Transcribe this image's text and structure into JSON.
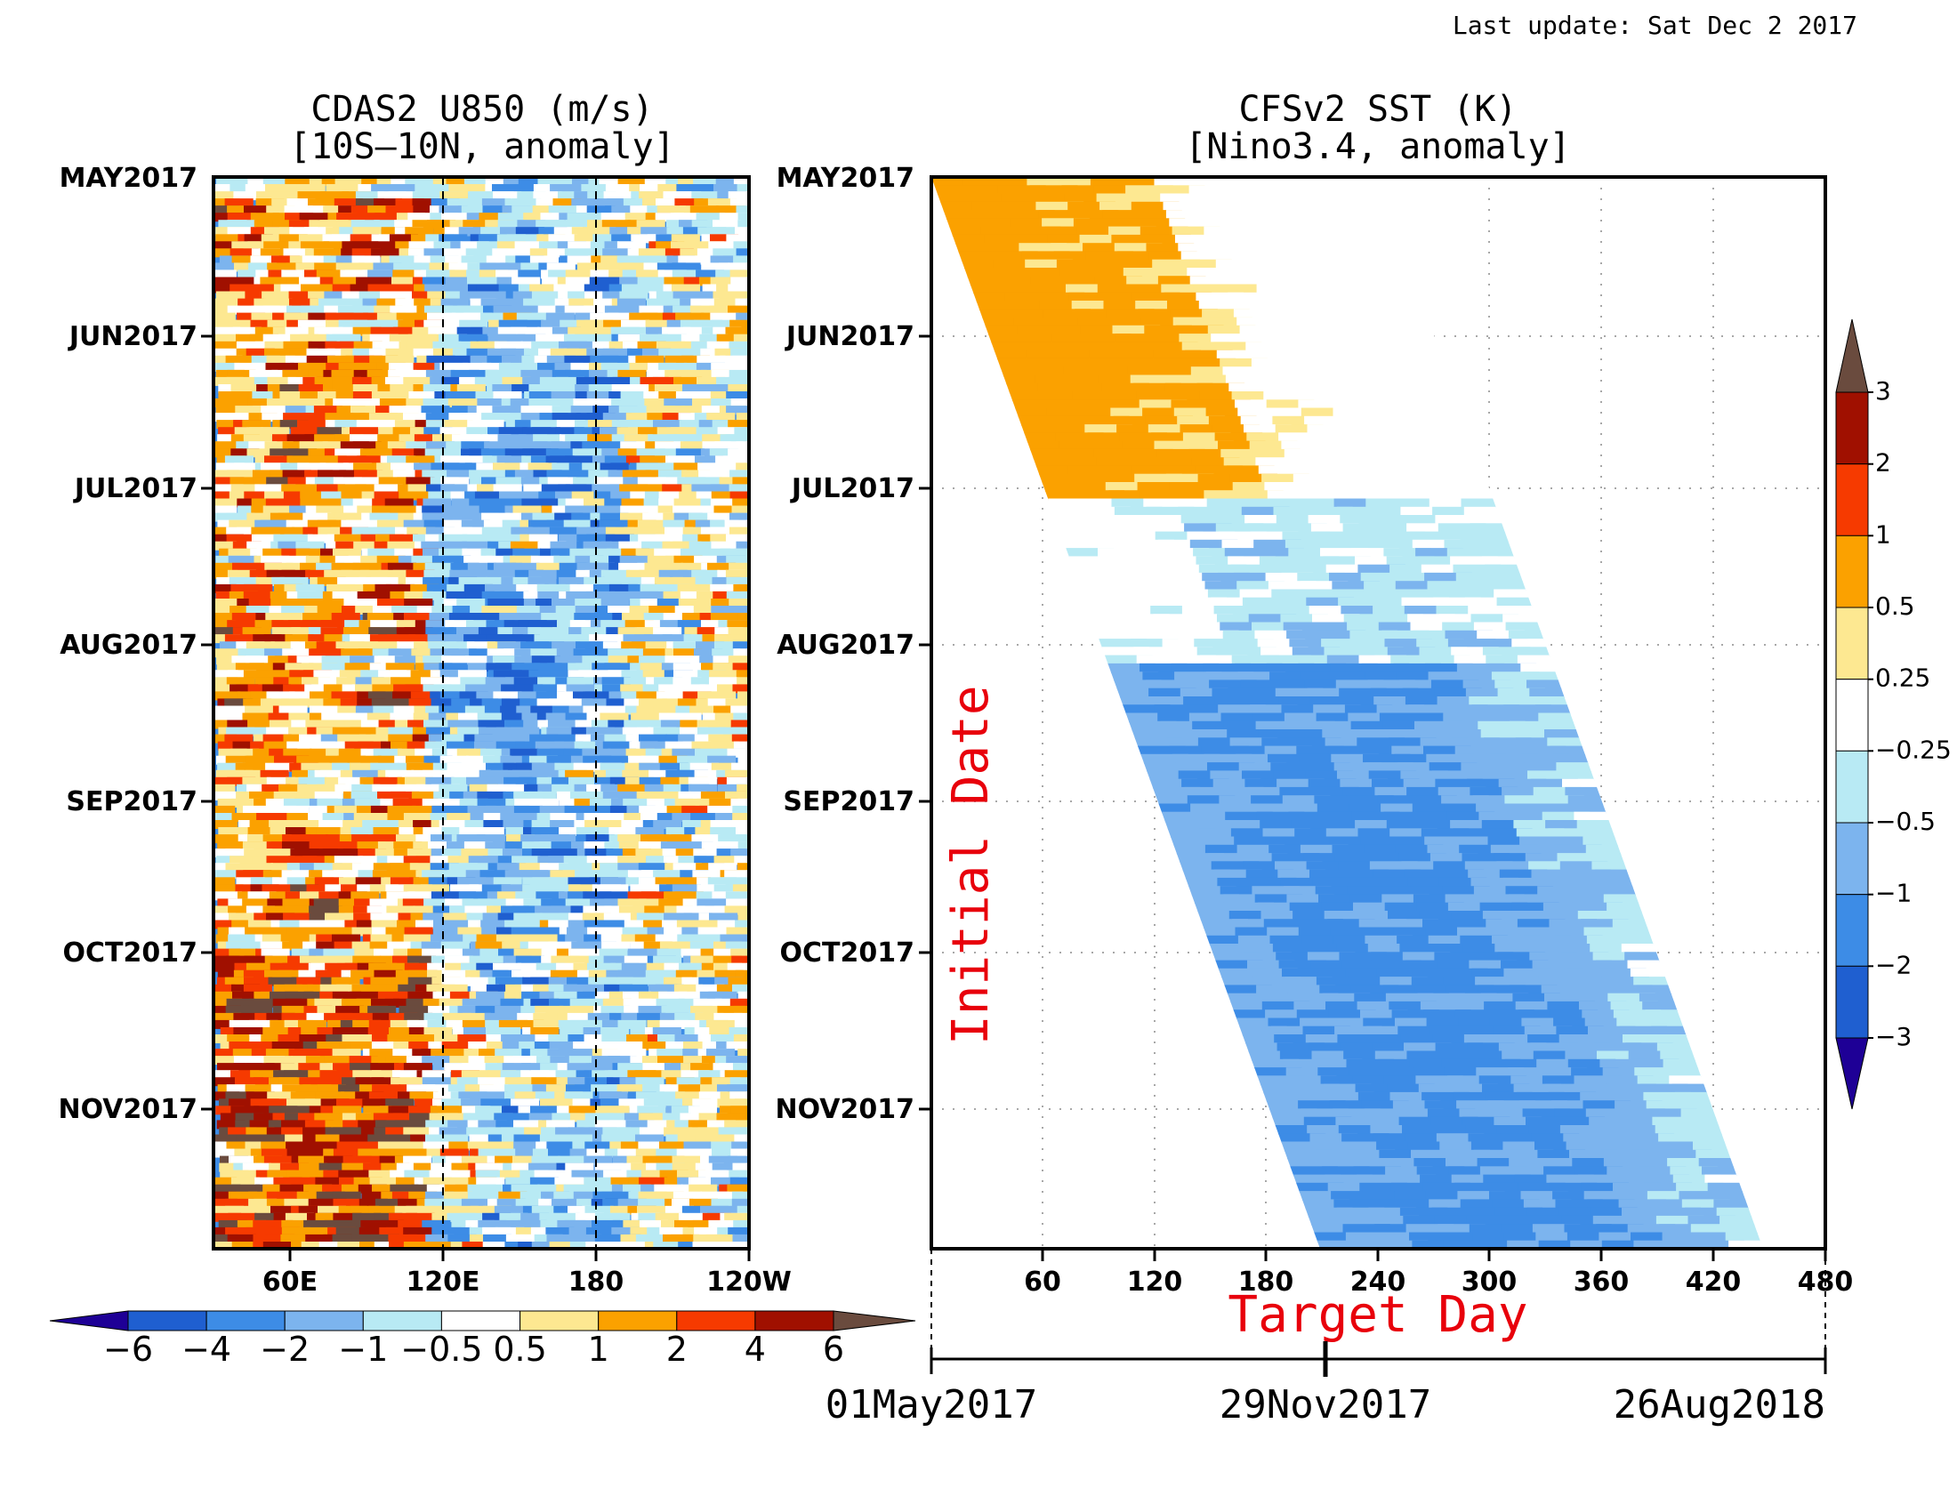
{
  "last_update": "Last update: Sat Dec 2 2017",
  "colors": {
    "levels": [
      "#1e0096",
      "#1f5fd0",
      "#3d8ce6",
      "#7cb4ee",
      "#b8eaf4",
      "#ffffff",
      "#fde891",
      "#fba100",
      "#f63a00",
      "#a01000",
      "#6a4b3e"
    ]
  },
  "chart_data": [
    {
      "type": "heatmap",
      "title": "CDAS2 U850 (m/s)",
      "subtitle": "[10S–10N, anomaly]",
      "x_ticks": [
        "60E",
        "120E",
        "180",
        "120W"
      ],
      "y_ticks": [
        "MAY2017",
        "JUN2017",
        "JUL2017",
        "AUG2017",
        "SEP2017",
        "OCT2017",
        "NOV2017"
      ],
      "reference_lines": [
        "120E",
        "180"
      ],
      "colorbar_labels": [
        "−6",
        "−4",
        "−2",
        "−1",
        "−0.5",
        "0.5",
        "1",
        "2",
        "4",
        "6"
      ],
      "colorbar_levels": [
        -6,
        -4,
        -2,
        -1,
        -0.5,
        0.5,
        1,
        2,
        4,
        6
      ],
      "colorbar_orientation": "horizontal"
    },
    {
      "type": "heatmap",
      "title": "CFSv2 SST (K)",
      "subtitle": "[Nino3.4, anomaly]",
      "xlabel": "Target Day",
      "ylabel": "Initial Date",
      "x_ticks": [
        "60",
        "120",
        "180",
        "240",
        "300",
        "360",
        "420",
        "480"
      ],
      "xlim": [
        0,
        480
      ],
      "y_ticks": [
        "MAY2017",
        "JUN2017",
        "JUL2017",
        "AUG2017",
        "SEP2017",
        "OCT2017",
        "NOV2017"
      ],
      "date_axis": [
        "01May2017",
        "29Nov2017",
        "26Aug2018"
      ],
      "colorbar_labels": [
        "3",
        "2",
        "1",
        "0.5",
        "0.25",
        "−0.25",
        "−0.5",
        "−1",
        "−2",
        "−3"
      ],
      "colorbar_levels": [
        -3,
        -2,
        -1,
        -0.5,
        -0.25,
        0.25,
        0.5,
        1,
        2,
        3
      ],
      "colorbar_orientation": "vertical",
      "grid": true
    }
  ]
}
